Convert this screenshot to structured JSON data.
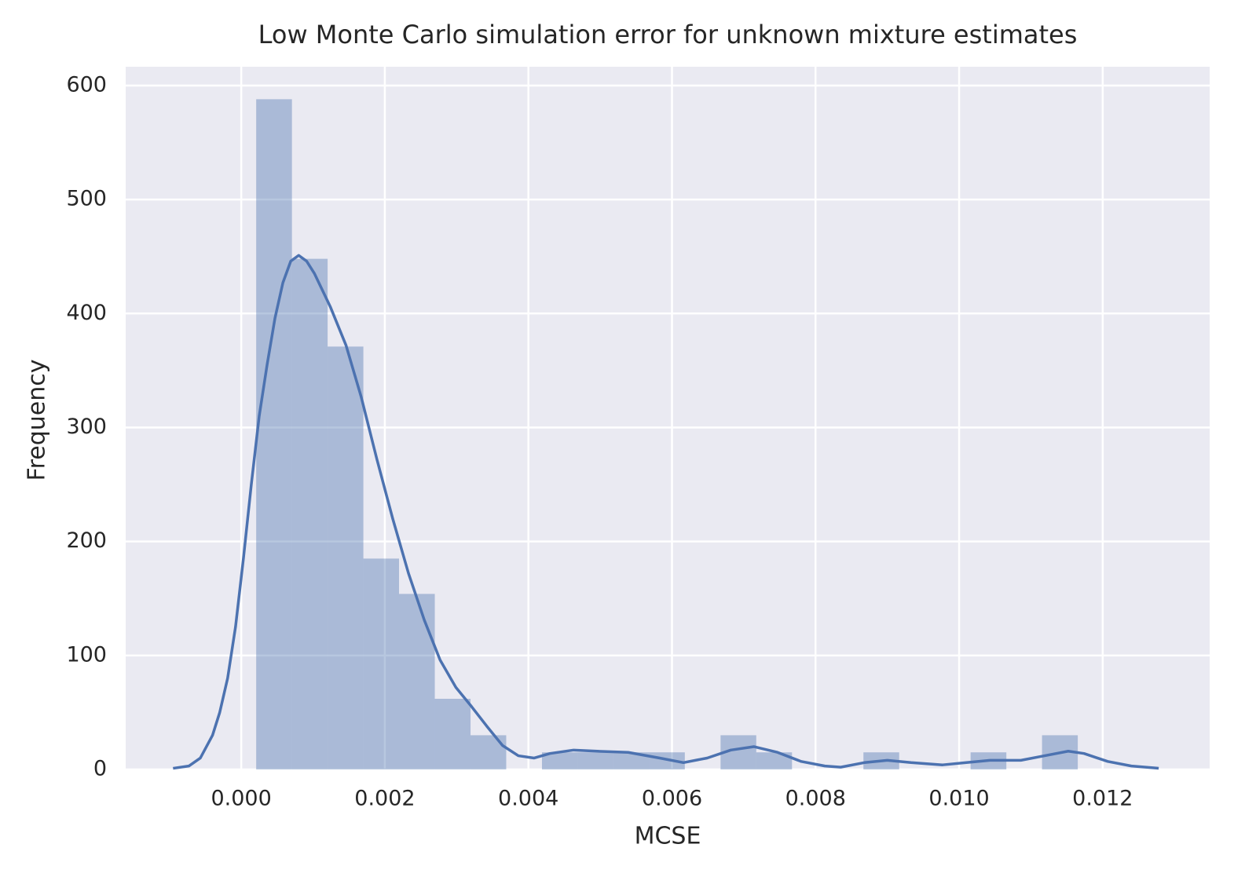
{
  "chart_data": {
    "type": "histogram",
    "title": "Low Monte Carlo simulation error for unknown mixture estimates",
    "xlabel": "MCSE",
    "ylabel": "Frequency",
    "bins": [
      0.000208,
      0.000706,
      0.001203,
      0.001701,
      0.002198,
      0.002696,
      0.003194,
      0.003691,
      0.004189,
      0.004686,
      0.005184,
      0.005682,
      0.006179,
      0.006677,
      0.007174,
      0.007672,
      0.00817,
      0.008667,
      0.009165,
      0.009662,
      0.01016,
      0.010658,
      0.011155,
      0.011653
    ],
    "values": [
      588,
      448,
      371,
      185,
      154,
      62,
      30,
      0,
      15,
      15,
      15,
      15,
      0,
      30,
      15,
      0,
      0,
      15,
      0,
      0,
      15,
      0,
      30
    ],
    "color": "#4c72b0",
    "kde": {
      "color": "#4c72b0",
      "x": [
        -0.00095,
        -0.00073,
        -0.00057,
        -0.0004,
        -0.0003,
        -0.00019,
        -8e-05,
        3e-05,
        0.00014,
        0.00025,
        0.00036,
        0.00047,
        0.00058,
        0.00069,
        0.0008,
        0.00091,
        0.00102,
        0.00124,
        0.00146,
        0.00167,
        0.00189,
        0.00211,
        0.00233,
        0.00255,
        0.00277,
        0.00299,
        0.00321,
        0.00342,
        0.00364,
        0.00386,
        0.00408,
        0.0043,
        0.00463,
        0.00496,
        0.00539,
        0.00583,
        0.00616,
        0.00649,
        0.00682,
        0.00714,
        0.00747,
        0.0078,
        0.00813,
        0.00835,
        0.00868,
        0.009,
        0.00933,
        0.00977,
        0.0101,
        0.01043,
        0.01086,
        0.01119,
        0.01152,
        0.01174,
        0.01207,
        0.0124,
        0.01278
      ],
      "values": [
        1,
        3,
        10,
        30,
        50,
        80,
        125,
        185,
        250,
        310,
        355,
        396,
        427,
        446,
        451,
        446,
        435,
        406,
        372,
        327,
        272,
        220,
        172,
        131,
        96,
        72,
        55,
        38,
        21,
        12,
        10,
        14,
        17,
        16,
        15,
        10,
        6,
        10,
        17,
        20,
        15,
        7,
        3,
        2,
        6,
        8,
        6,
        4,
        6,
        8,
        8,
        12,
        16,
        14,
        7,
        3,
        1
      ]
    },
    "xlim": [
      -0.00161,
      0.01349
    ],
    "ylim": [
      0,
      616.5
    ],
    "xticks": [
      {
        "value": 0,
        "label": "0.000"
      },
      {
        "value": 0.002,
        "label": "0.002"
      },
      {
        "value": 0.004,
        "label": "0.004"
      },
      {
        "value": 0.006,
        "label": "0.006"
      },
      {
        "value": 0.008,
        "label": "0.008"
      },
      {
        "value": 0.01,
        "label": "0.010"
      },
      {
        "value": 0.012,
        "label": "0.012"
      }
    ],
    "yticks": [
      0,
      100,
      200,
      300,
      400,
      500,
      600
    ],
    "grid": true
  }
}
